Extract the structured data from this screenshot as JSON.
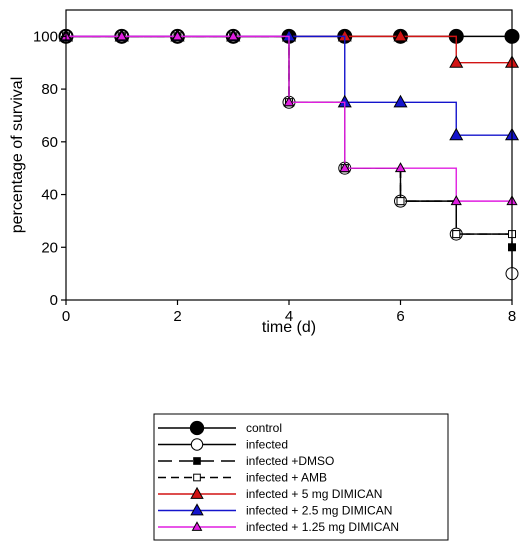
{
  "chart_data": {
    "type": "line",
    "subtype": "step",
    "xlabel": "time (d)",
    "ylabel": "percentage of survival",
    "xlim": [
      0,
      8
    ],
    "ylim": [
      0,
      110
    ],
    "x_ticks": [
      0,
      2,
      4,
      6,
      8
    ],
    "y_ticks": [
      0,
      20,
      40,
      60,
      80,
      100
    ],
    "grid": false,
    "legend_position": "bottom",
    "series": [
      {
        "name": "control",
        "color": "#000000",
        "marker": "circle-filled",
        "dash": "solid",
        "x": [
          0,
          1,
          2,
          3,
          4,
          5,
          6,
          7,
          8
        ],
        "y": [
          100,
          100,
          100,
          100,
          100,
          100,
          100,
          100,
          100
        ]
      },
      {
        "name": "infected",
        "color": "#000000",
        "marker": "circle-open",
        "dash": "solid",
        "x": [
          0,
          1,
          2,
          3,
          4,
          5,
          6,
          7,
          8
        ],
        "y": [
          100,
          100,
          100,
          100,
          75,
          50,
          37.5,
          25,
          10
        ]
      },
      {
        "name": "infected +DMSO",
        "color": "#000000",
        "marker": "square-filled",
        "dash": "long-dash",
        "x": [
          0,
          1,
          2,
          3,
          4,
          5,
          6,
          7,
          8
        ],
        "y": [
          100,
          100,
          100,
          100,
          75,
          50,
          37.5,
          25,
          20
        ]
      },
      {
        "name": "infected + AMB",
        "color": "#000000",
        "marker": "square-open",
        "dash": "dash",
        "x": [
          0,
          1,
          2,
          3,
          4,
          5,
          6,
          7,
          8
        ],
        "y": [
          100,
          100,
          100,
          100,
          75,
          50,
          37.5,
          25,
          25
        ]
      },
      {
        "name": "infected + 5 mg DIMICAN",
        "color": "#d21414",
        "marker": "triangle",
        "dash": "solid",
        "x": [
          0,
          1,
          2,
          3,
          4,
          5,
          6,
          7,
          8
        ],
        "y": [
          100,
          100,
          100,
          100,
          100,
          100,
          100,
          90,
          90
        ]
      },
      {
        "name": "infected + 2.5 mg DIMICAN",
        "color": "#1414cc",
        "marker": "triangle",
        "dash": "solid",
        "x": [
          0,
          1,
          2,
          3,
          4,
          5,
          6,
          7,
          8
        ],
        "y": [
          100,
          100,
          100,
          100,
          100,
          75,
          75,
          62.5,
          62.5
        ]
      },
      {
        "name": "infected + 1.25 mg DIMICAN",
        "color": "#e01ee0",
        "marker": "triangle-small",
        "dash": "solid",
        "x": [
          0,
          1,
          2,
          3,
          4,
          5,
          6,
          7,
          8
        ],
        "y": [
          100,
          100,
          100,
          100,
          75,
          50,
          50,
          37.5,
          37.5
        ]
      }
    ]
  }
}
